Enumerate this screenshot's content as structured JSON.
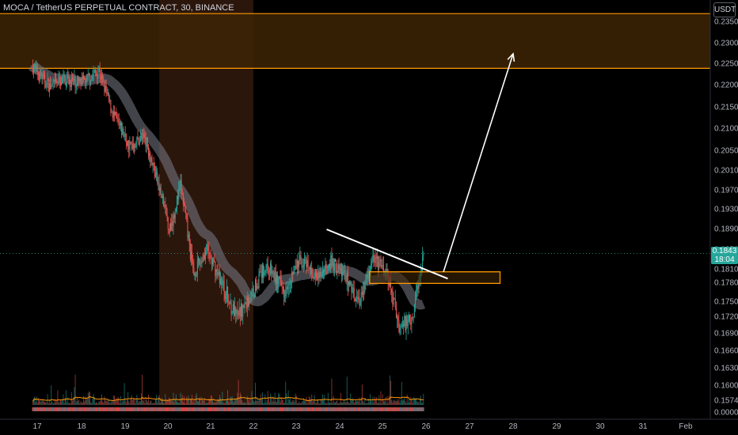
{
  "header": {
    "title": "MOCA / TetherUS PERPETUAL CONTRACT, 30, BINANCE",
    "currency_button": "USDT"
  },
  "colors": {
    "up": "#26a69a",
    "down": "#ef5350",
    "zone_fill": "#3d2506",
    "zone_border": "#ff9800",
    "session_highlight": "#3a1e10",
    "trendline": "#ffffff",
    "moving_average": "#787b86",
    "volume_ma": "#ff9800"
  },
  "price_label": {
    "price": "0.1843",
    "countdown": "18:04"
  },
  "chart_data": {
    "type": "candlestick",
    "symbol": "MOCA / TetherUS PERPETUAL CONTRACT",
    "interval": "30",
    "exchange": "BINANCE",
    "y_ticks": [
      "0.2350",
      "0.2300",
      "0.2250",
      "0.2200",
      "0.2150",
      "0.2100",
      "0.2050",
      "0.2010",
      "0.1970",
      "0.1930",
      "0.1890",
      "0.1850",
      "0.1810",
      "0.1780",
      "0.1750",
      "0.1720",
      "0.1690",
      "0.1660",
      "0.1630",
      "0.1600",
      "0.1574",
      "0.0000"
    ],
    "x_ticks": [
      "17",
      "18",
      "19",
      "20",
      "21",
      "22",
      "23",
      "24",
      "25",
      "26",
      "27",
      "28",
      "29",
      "30",
      "31",
      "Feb"
    ],
    "last_price": 0.1843,
    "price_path": [
      {
        "day": 16.9,
        "price": 0.2245
      },
      {
        "day": 17.3,
        "price": 0.2195
      },
      {
        "day": 17.6,
        "price": 0.2215
      },
      {
        "day": 18.0,
        "price": 0.2205
      },
      {
        "day": 18.4,
        "price": 0.2235
      },
      {
        "day": 18.7,
        "price": 0.214
      },
      {
        "day": 19.1,
        "price": 0.206
      },
      {
        "day": 19.45,
        "price": 0.2085
      },
      {
        "day": 19.75,
        "price": 0.199
      },
      {
        "day": 20.05,
        "price": 0.189
      },
      {
        "day": 20.3,
        "price": 0.198
      },
      {
        "day": 20.6,
        "price": 0.18
      },
      {
        "day": 20.9,
        "price": 0.185
      },
      {
        "day": 21.3,
        "price": 0.1775
      },
      {
        "day": 21.6,
        "price": 0.172
      },
      {
        "day": 21.95,
        "price": 0.176
      },
      {
        "day": 22.3,
        "price": 0.182
      },
      {
        "day": 22.7,
        "price": 0.177
      },
      {
        "day": 23.1,
        "price": 0.183
      },
      {
        "day": 23.5,
        "price": 0.179
      },
      {
        "day": 23.75,
        "price": 0.183
      },
      {
        "day": 24.1,
        "price": 0.18
      },
      {
        "day": 24.45,
        "price": 0.175
      },
      {
        "day": 24.8,
        "price": 0.1835
      },
      {
        "day": 25.1,
        "price": 0.18
      },
      {
        "day": 25.4,
        "price": 0.17
      },
      {
        "day": 25.7,
        "price": 0.1725
      },
      {
        "day": 25.95,
        "price": 0.1843
      }
    ],
    "annotations": {
      "resistance_zone": {
        "from_price": 0.224,
        "to_price": 0.237
      },
      "breakout_box": {
        "from_price": 0.179,
        "to_price": 0.18,
        "from_day": 24.7,
        "to_day": 27.7
      },
      "trendline": {
        "start": {
          "day": 23.7,
          "price": 0.189
        },
        "end": {
          "day": 26.5,
          "price": 0.179
        }
      },
      "target_arrow": {
        "start": {
          "day": 26.4,
          "price": 0.1805
        },
        "end": {
          "day": 28.0,
          "price": 0.2275
        }
      },
      "session_highlight": {
        "from_day": 19.8,
        "to_day": 22.0
      }
    },
    "grid": false
  }
}
